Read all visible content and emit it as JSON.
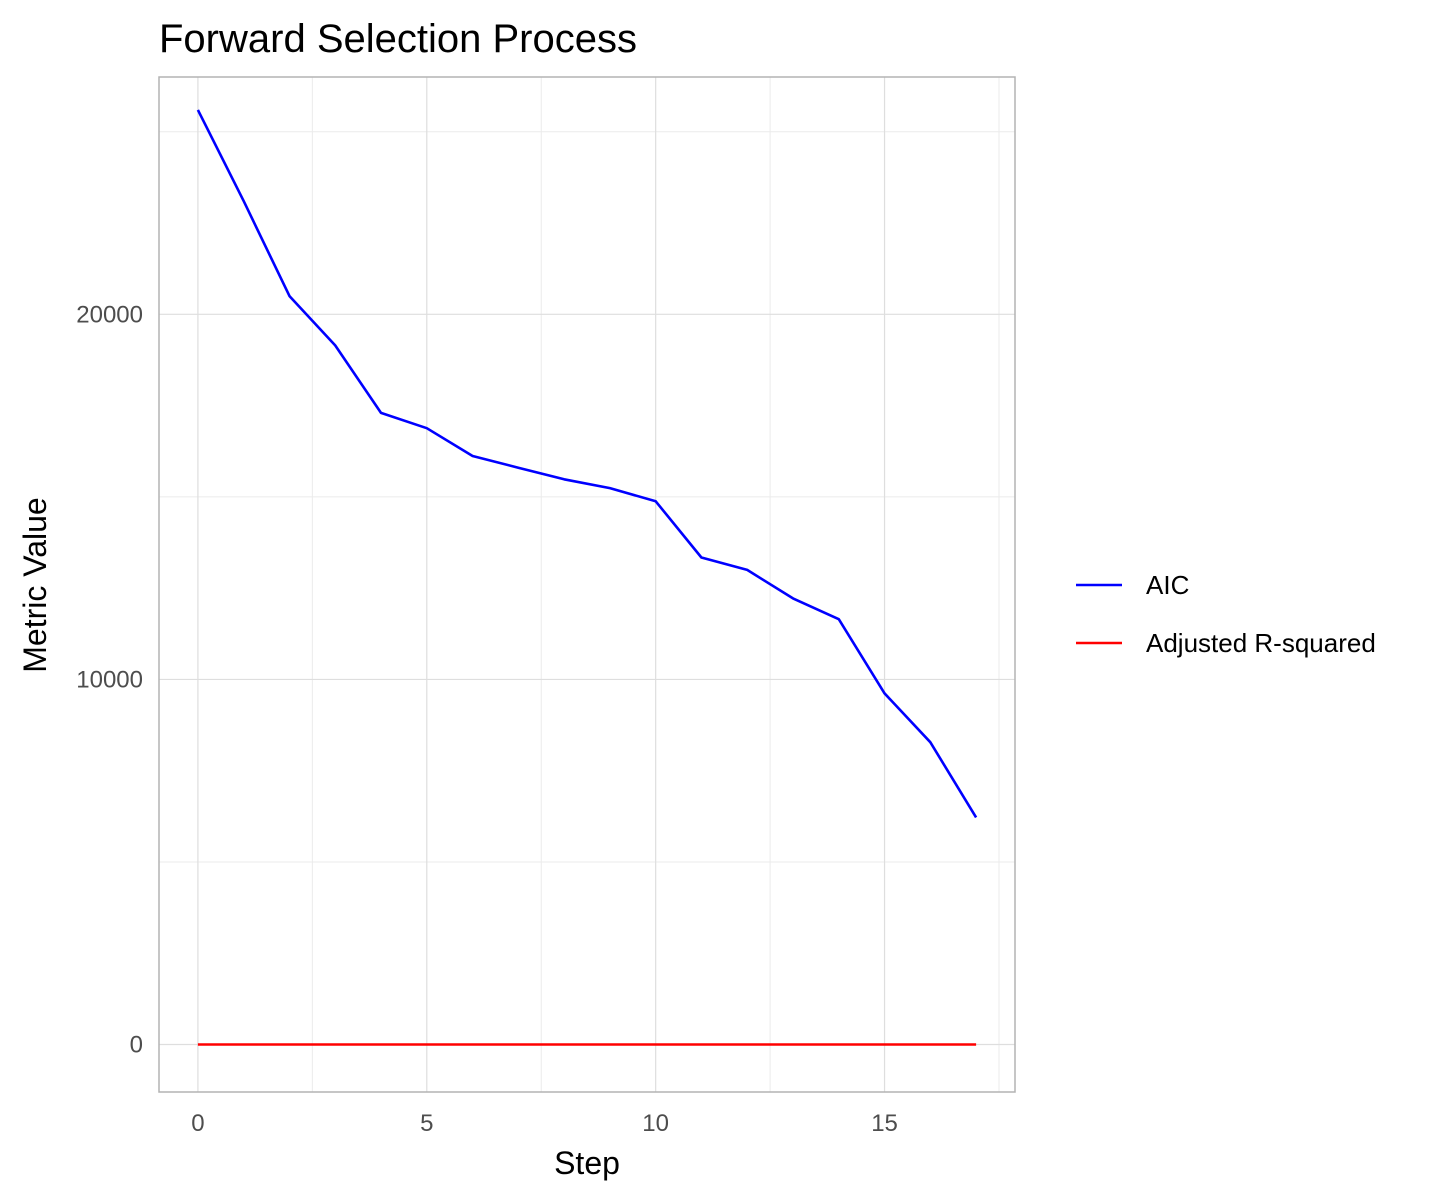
{
  "chart_data": {
    "type": "line",
    "title": "Forward Selection Process",
    "xlabel": "Step",
    "ylabel": "Metric Value",
    "xlim": [
      -0.85,
      17.85
    ],
    "ylim": [
      -1300,
      26500
    ],
    "x_major_ticks": [
      0,
      5,
      10,
      15
    ],
    "x_minor_ticks": [
      2.5,
      7.5,
      12.5,
      17.5
    ],
    "y_major_ticks": [
      0,
      10000,
      20000
    ],
    "y_minor_ticks": [
      5000,
      15000,
      25000
    ],
    "tick_labels_x": [
      "0",
      "5",
      "10",
      "15"
    ],
    "tick_labels_y": [
      "0",
      "10000",
      "20000"
    ],
    "grid": true,
    "legend_position": "right",
    "x": [
      0,
      1,
      2,
      3,
      4,
      5,
      6,
      7,
      8,
      9,
      10,
      11,
      12,
      13,
      14,
      15,
      16,
      17
    ],
    "series": [
      {
        "name": "AIC",
        "color": "#0000ff",
        "values": [
          25600,
          23100,
          20500,
          19150,
          17300,
          16880,
          16120,
          15800,
          15480,
          15240,
          14880,
          13340,
          13000,
          12220,
          11650,
          9620,
          8280,
          6220
        ]
      },
      {
        "name": "Adjusted R-squared",
        "color": "#ff0000",
        "values": [
          0.0,
          0.05,
          0.09,
          0.11,
          0.12,
          0.12,
          0.12,
          0.12,
          0.12,
          0.12,
          0.12,
          0.12,
          0.12,
          0.12,
          0.12,
          0.12,
          0.12,
          0.12
        ]
      }
    ]
  }
}
